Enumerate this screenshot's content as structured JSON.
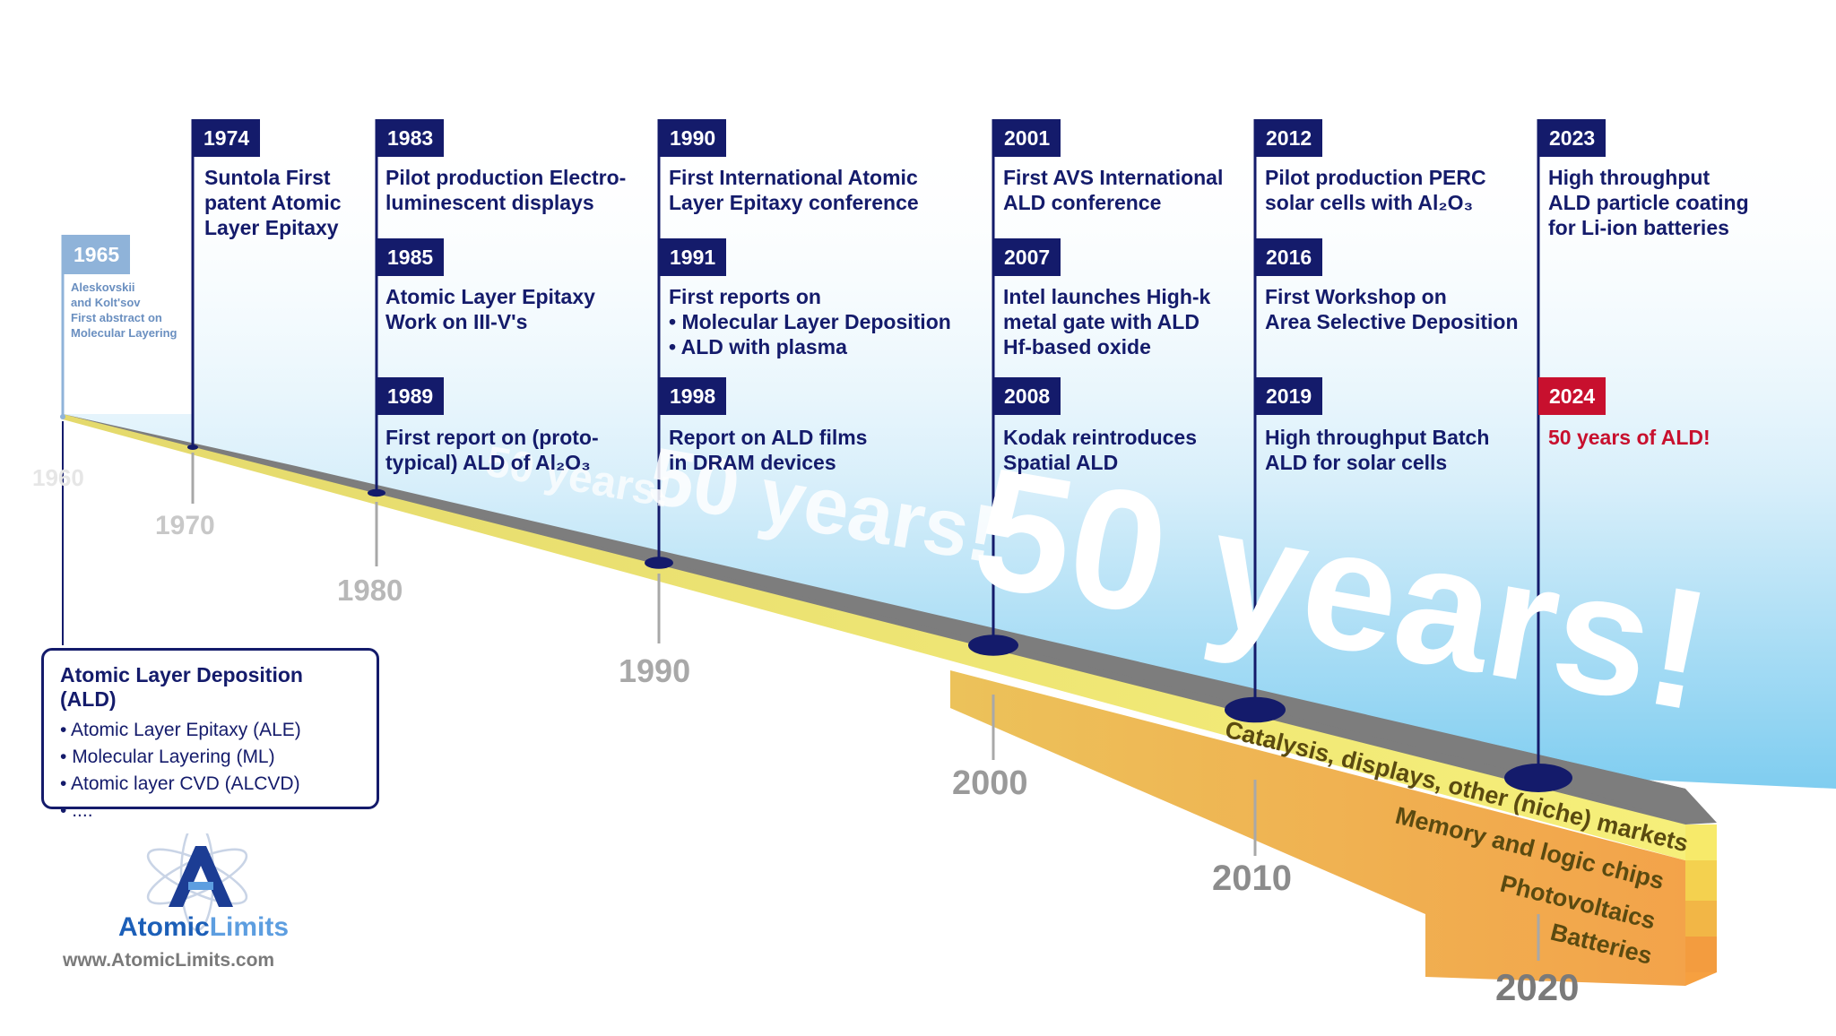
{
  "watermark": "50 years!",
  "year_axis": [
    "1960",
    "1970",
    "1980",
    "1990",
    "2000",
    "2010",
    "2020"
  ],
  "events": [
    {
      "year": "1965",
      "text": "Aleskovskii\nand Kolt'sov\nFirst abstract on\nMolecular Layering"
    },
    {
      "year": "1974",
      "text": "Suntola First\npatent Atomic\nLayer Epitaxy"
    },
    {
      "year": "1983",
      "text": "Pilot production Electro-\nluminescent displays"
    },
    {
      "year": "1985",
      "text": "Atomic Layer Epitaxy\nWork on III-V's"
    },
    {
      "year": "1989",
      "text": "First report on (proto-\ntypical) ALD of Al₂O₃"
    },
    {
      "year": "1990",
      "text": "First International Atomic\nLayer Epitaxy conference"
    },
    {
      "year": "1991",
      "text": "First reports on\n• Molecular Layer Deposition\n• ALD with plasma"
    },
    {
      "year": "1998",
      "text": "Report on ALD films\nin DRAM devices"
    },
    {
      "year": "2001",
      "text": "First AVS International\nALD conference"
    },
    {
      "year": "2007",
      "text": "Intel launches High-k\nmetal gate with ALD\nHf-based oxide"
    },
    {
      "year": "2008",
      "text": "Kodak reintroduces\nSpatial ALD"
    },
    {
      "year": "2012",
      "text": "Pilot production PERC\nsolar cells with Al₂O₃"
    },
    {
      "year": "2016",
      "text": "First Workshop on\nArea Selective Deposition"
    },
    {
      "year": "2019",
      "text": "High throughput Batch\nALD for solar cells"
    },
    {
      "year": "2023",
      "text": "High throughput\nALD particle coating\nfor Li-ion batteries"
    },
    {
      "year": "2024",
      "text": "50 years of ALD!"
    }
  ],
  "markets": [
    "Catalysis, displays, other (niche) markets",
    "Memory and logic chips",
    "Photovoltaics",
    "Batteries"
  ],
  "legend": {
    "title": "Atomic Layer Deposition (ALD)",
    "items": [
      "Atomic Layer Epitaxy (ALE)",
      "Molecular Layering (ML)",
      "Atomic layer CVD (ALCVD)",
      "...."
    ]
  },
  "logo": {
    "word1": "Atomic",
    "word2": "Limits",
    "url": "www.AtomicLimits.com"
  },
  "colors": {
    "navy": "#141b6b",
    "red": "#c8102e",
    "beam_gray": "#7d7d7d",
    "beam_yellow": "#e8dc6a",
    "orange": "#f0a850",
    "year_gray": "#9a9a9a"
  }
}
